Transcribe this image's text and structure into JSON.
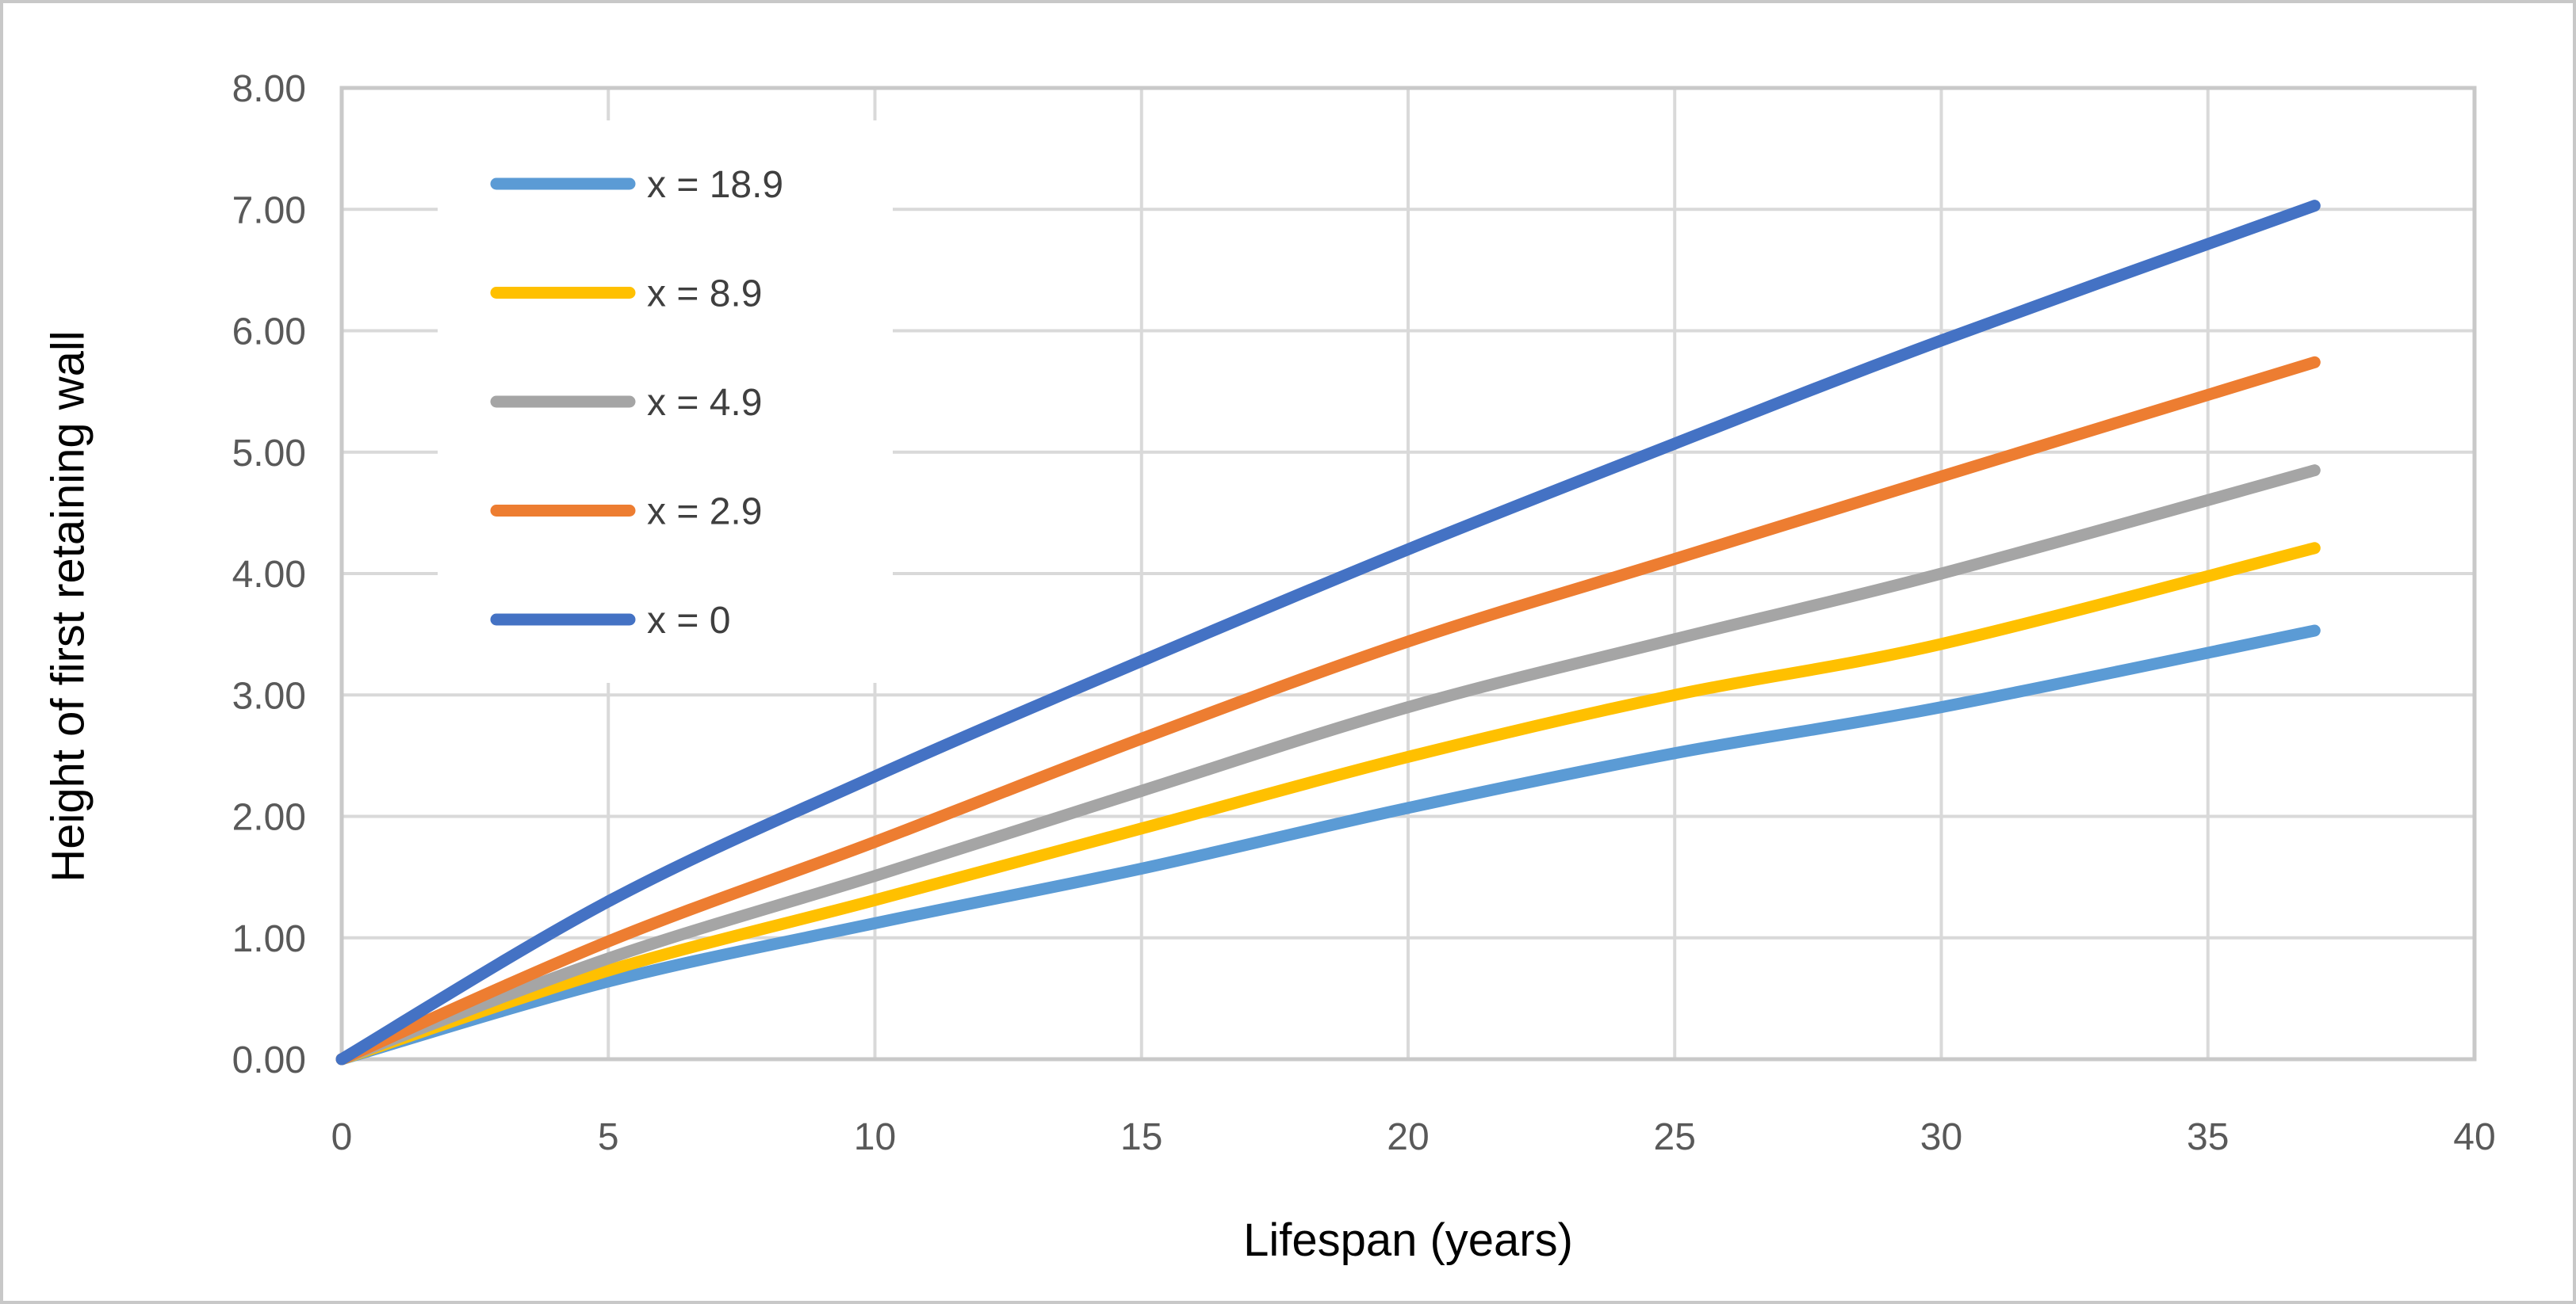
{
  "figure": {
    "background_color": "#ffffff",
    "outer_border_color": "#c8c8c8",
    "plot_border_color": "#c9c9c9",
    "gridline_color": "#d9d9d9",
    "tick_label_color": "#595959",
    "axis_title_color": "#000000",
    "legend_text_color": "#3f3f3f",
    "legend_background": "#ffffff"
  },
  "chart_data": {
    "type": "line",
    "title": "",
    "xlabel": "Lifespan (years)",
    "ylabel": "Height of first retaining wall",
    "xlim": [
      0,
      40
    ],
    "ylim": [
      0,
      8
    ],
    "grid": true,
    "legend_position": "upper-left-inside",
    "x_ticks": [
      "0",
      "5",
      "10",
      "15",
      "20",
      "25",
      "30",
      "35",
      "40"
    ],
    "y_ticks": [
      "0.00",
      "1.00",
      "2.00",
      "3.00",
      "4.00",
      "5.00",
      "6.00",
      "7.00",
      "8.00"
    ],
    "x": [
      0,
      5,
      10,
      15,
      20,
      25,
      30,
      37
    ],
    "series": [
      {
        "name": "x = 18.9",
        "color": "#5B9BD5",
        "values": [
          0,
          0.64,
          1.12,
          1.57,
          2.07,
          2.52,
          2.9,
          3.53
        ]
      },
      {
        "name": "x = 8.9",
        "color": "#FFC000",
        "values": [
          0,
          0.73,
          1.31,
          1.9,
          2.49,
          3.0,
          3.42,
          4.21
        ]
      },
      {
        "name": "x = 4.9",
        "color": "#A5A5A5",
        "values": [
          0,
          0.83,
          1.51,
          2.21,
          2.9,
          3.46,
          4.0,
          4.85
        ]
      },
      {
        "name": "x = 2.9",
        "color": "#ED7D31",
        "values": [
          0,
          0.97,
          1.79,
          2.64,
          3.44,
          4.12,
          4.8,
          5.74
        ]
      },
      {
        "name": "x = 0",
        "color": "#4472C4",
        "values": [
          0,
          1.3,
          2.33,
          3.28,
          4.2,
          5.07,
          5.92,
          7.03
        ]
      }
    ]
  }
}
